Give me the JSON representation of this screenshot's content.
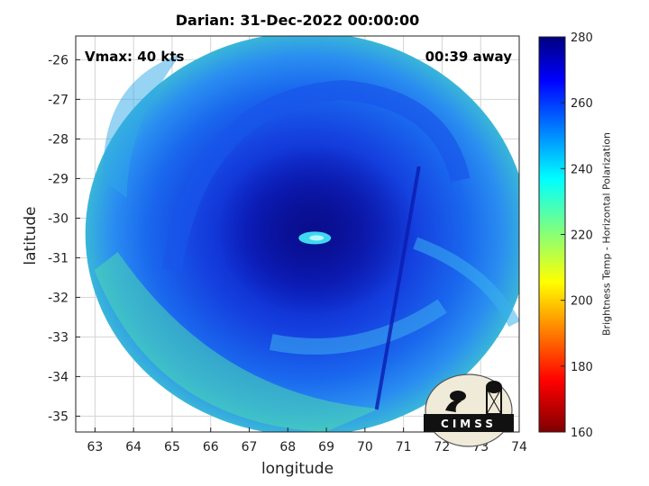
{
  "chart_data": {
    "type": "heatmap",
    "title": "Darian: 31-Dec-2022 00:00:00",
    "xlabel": "longitude",
    "ylabel": "latitude",
    "xlim": [
      62.5,
      74
    ],
    "ylim": [
      -35.4,
      -25.4
    ],
    "xticks": [
      "63",
      "64",
      "65",
      "66",
      "67",
      "68",
      "69",
      "70",
      "71",
      "72",
      "73",
      "74"
    ],
    "yticks": [
      "-26",
      "-27",
      "-28",
      "-29",
      "-30",
      "-31",
      "-32",
      "-33",
      "-34",
      "-35"
    ],
    "grid": true,
    "annotations": {
      "vmax": "Vmax: 40 kts",
      "time_offset": "00:39 away"
    },
    "colorbar": {
      "label": "Brightness Temp - Horizontal Polarization",
      "range": [
        160,
        280
      ],
      "ticks": [
        "280",
        "260",
        "240",
        "220",
        "200",
        "180",
        "160"
      ],
      "colormap": "jet"
    },
    "swath_center": [
      68.5,
      -30.4
    ],
    "storm_center": [
      68.7,
      -30.5
    ],
    "scan_edge_lon": [
      70.3,
      71.4
    ],
    "logo_text": "CIMSS"
  }
}
